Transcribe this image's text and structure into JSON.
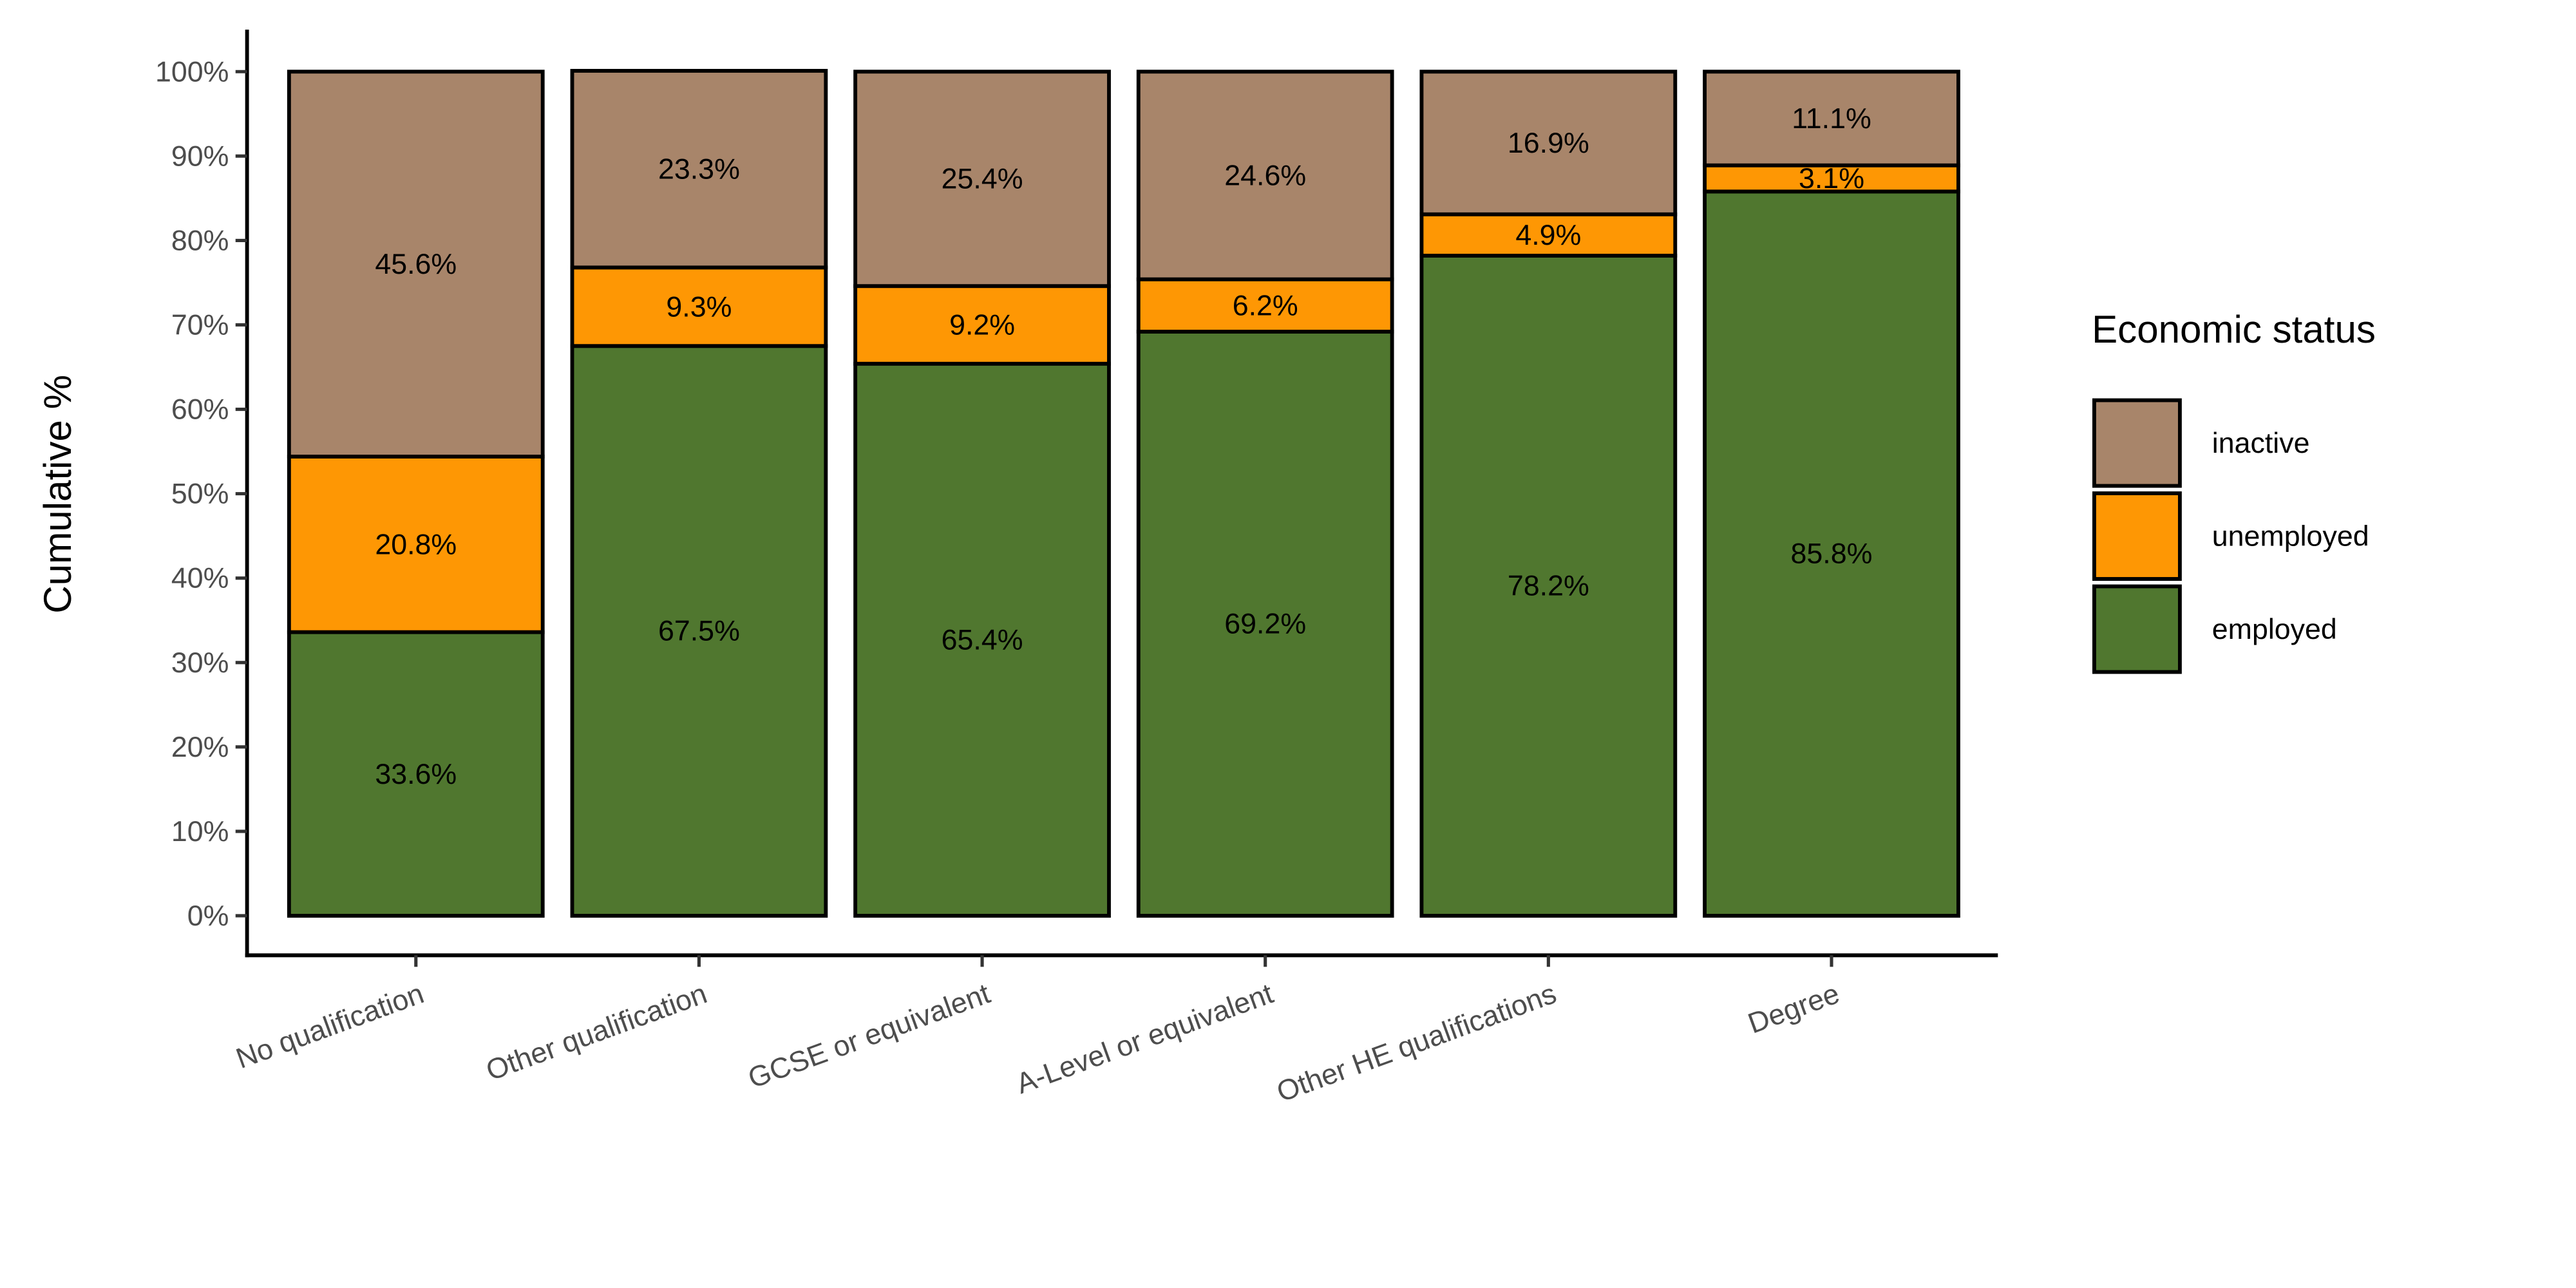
{
  "chart_data": {
    "type": "bar",
    "stacked": true,
    "title": "",
    "xlabel": "",
    "ylabel": "Cumulative %",
    "ylim": [
      0,
      100
    ],
    "yticks": [
      0,
      10,
      20,
      30,
      40,
      50,
      60,
      70,
      80,
      90,
      100
    ],
    "ytick_labels": [
      "0%",
      "10%",
      "20%",
      "30%",
      "40%",
      "50%",
      "60%",
      "70%",
      "80%",
      "90%",
      "100%"
    ],
    "grid": false,
    "legend_position": "right",
    "legend_title": "Economic status",
    "categories": [
      "No qualification",
      "Other qualification",
      "GCSE or equivalent",
      "A-Level or equivalent",
      "Other HE qualifications",
      "Degree"
    ],
    "series": [
      {
        "name": "employed",
        "color": "#50772f",
        "values": [
          33.6,
          67.5,
          65.4,
          69.2,
          78.2,
          85.8
        ],
        "labels": [
          "33.6%",
          "67.5%",
          "65.4%",
          "69.2%",
          "78.2%",
          "85.8%"
        ]
      },
      {
        "name": "unemployed",
        "color": "#fe9704",
        "values": [
          20.8,
          9.3,
          9.2,
          6.2,
          4.9,
          3.1
        ],
        "labels": [
          "20.8%",
          "9.3%",
          "9.2%",
          "6.2%",
          "4.9%",
          "3.1%"
        ]
      },
      {
        "name": "inactive",
        "color": "#a8856a",
        "values": [
          45.6,
          23.3,
          25.4,
          24.6,
          16.9,
          11.1
        ],
        "labels": [
          "45.6%",
          "23.3%",
          "25.4%",
          "24.6%",
          "16.9%",
          "11.1%"
        ]
      }
    ],
    "legend_order": [
      "inactive",
      "unemployed",
      "employed"
    ]
  }
}
